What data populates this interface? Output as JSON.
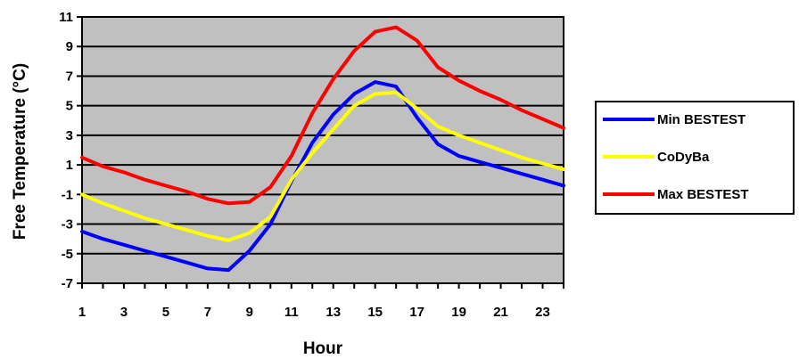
{
  "chart_data": {
    "type": "line",
    "title": "",
    "xlabel": "Hour",
    "ylabel": "Free Temperature (°C)",
    "xlim": [
      1,
      24
    ],
    "ylim": [
      -7,
      11
    ],
    "x_ticks": [
      1,
      3,
      5,
      7,
      9,
      11,
      13,
      15,
      17,
      19,
      21,
      23
    ],
    "y_ticks": [
      -7,
      -5,
      -3,
      -1,
      1,
      3,
      5,
      7,
      9,
      11
    ],
    "grid": true,
    "plot_background": "#c0c0c0",
    "legend_position": "right",
    "x": [
      1,
      2,
      3,
      4,
      5,
      6,
      7,
      8,
      9,
      10,
      11,
      12,
      13,
      14,
      15,
      16,
      17,
      18,
      19,
      20,
      21,
      22,
      23,
      24
    ],
    "series": [
      {
        "name": "Min BESTEST",
        "color": "#0000ff",
        "values": [
          -3.5,
          -4.0,
          -4.4,
          -4.8,
          -5.2,
          -5.6,
          -6.0,
          -6.1,
          -4.8,
          -3.0,
          -0.1,
          2.5,
          4.4,
          5.8,
          6.6,
          6.3,
          4.2,
          2.4,
          1.6,
          1.2,
          0.8,
          0.4,
          0.0,
          -0.4
        ]
      },
      {
        "name": "CoDyBa",
        "color": "#ffff00",
        "values": [
          -1.0,
          -1.6,
          -2.1,
          -2.6,
          -3.0,
          -3.4,
          -3.8,
          -4.1,
          -3.6,
          -2.5,
          0.0,
          1.8,
          3.4,
          5.0,
          5.8,
          5.9,
          4.8,
          3.6,
          3.0,
          2.5,
          2.0,
          1.5,
          1.1,
          0.7
        ]
      },
      {
        "name": "Max BESTEST",
        "color": "#ff0000",
        "values": [
          1.5,
          0.9,
          0.5,
          0.0,
          -0.4,
          -0.8,
          -1.3,
          -1.6,
          -1.5,
          -0.5,
          1.6,
          4.5,
          6.8,
          8.7,
          10.0,
          10.3,
          9.4,
          7.6,
          6.7,
          6.0,
          5.4,
          4.7,
          4.1,
          3.5
        ]
      }
    ]
  }
}
